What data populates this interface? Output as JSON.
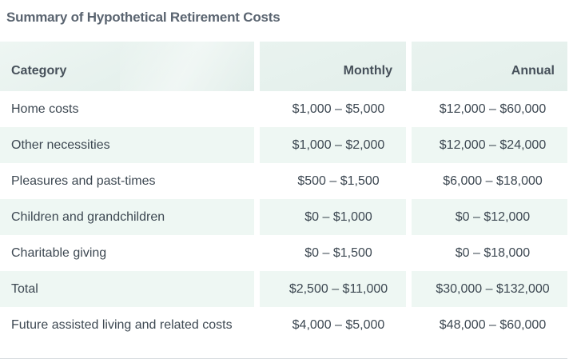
{
  "title": "Summary of Hypothetical Retirement Costs",
  "columns": {
    "category": "Category",
    "monthly": "Monthly",
    "annual": "Annual"
  },
  "rows": [
    {
      "category": "Home costs",
      "monthly": "$1,000 – $5,000",
      "annual": "$12,000 – $60,000"
    },
    {
      "category": "Other necessities",
      "monthly": "$1,000 – $2,000",
      "annual": "$12,000 – $24,000"
    },
    {
      "category": "Pleasures and past-times",
      "monthly": "$500 – $1,500",
      "annual": "$6,000 – $18,000"
    },
    {
      "category": "Children and grandchildren",
      "monthly": "$0 – $1,000",
      "annual": "$0 – $12,000"
    },
    {
      "category": "Charitable giving",
      "monthly": "$0 – $1,500",
      "annual": "$0 – $18,000"
    },
    {
      "category": "Total",
      "monthly": "$2,500 – $11,000",
      "annual": "$30,000 – $132,000"
    },
    {
      "category": "Future assisted living and related costs",
      "monthly": "$4,000 – $5,000",
      "annual": "$48,000 – $60,000"
    }
  ]
}
